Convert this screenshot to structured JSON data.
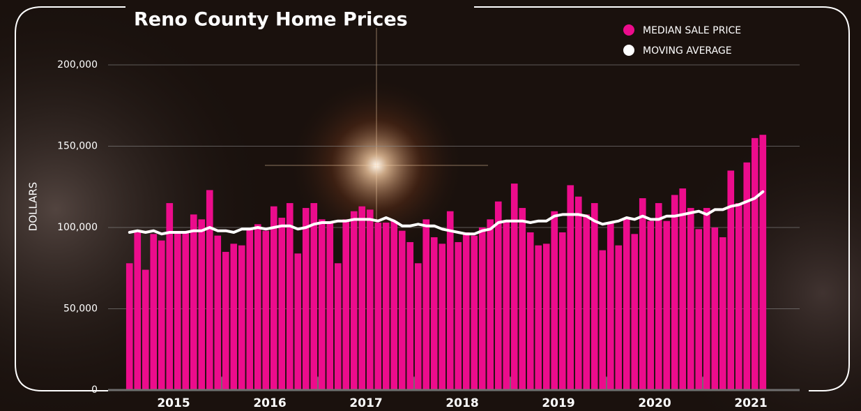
{
  "chart_data": {
    "type": "bar",
    "title": "Reno County Home Prices",
    "y_label": "DOLLARS",
    "x_labels": [
      "2015",
      "2016",
      "2017",
      "2018",
      "2019",
      "2020",
      "2021"
    ],
    "categories": [
      null,
      null,
      null,
      null,
      null,
      null,
      null,
      null,
      null,
      null,
      null,
      null,
      null,
      null,
      null,
      null,
      null,
      null,
      null,
      null,
      null,
      null,
      null,
      null,
      null,
      null,
      null,
      null,
      null,
      null,
      null,
      null,
      null,
      null,
      null,
      null,
      null,
      null,
      null,
      null,
      null,
      null,
      null,
      null,
      null,
      null,
      null,
      null,
      null,
      null,
      null,
      null,
      null,
      null,
      null,
      null,
      null,
      null,
      null,
      null,
      null,
      null,
      null,
      null,
      null,
      null,
      null,
      null,
      null,
      null,
      null,
      null,
      null,
      null,
      null,
      null,
      null,
      null,
      null,
      null
    ],
    "series": [
      {
        "name": "MEDIAN SALE PRICE",
        "type": "bar",
        "color": "#ec0c8c",
        "values": [
          78000,
          97000,
          74000,
          96000,
          92000,
          115000,
          97000,
          97000,
          108000,
          105000,
          123000,
          95000,
          85000,
          90000,
          89000,
          99000,
          102000,
          98000,
          113000,
          106000,
          115000,
          84000,
          112000,
          115000,
          105000,
          103000,
          78000,
          105000,
          110000,
          113000,
          111000,
          103000,
          103000,
          104000,
          98000,
          91000,
          78000,
          105000,
          94000,
          90000,
          110000,
          91000,
          97000,
          95000,
          100000,
          105000,
          116000,
          104000,
          127000,
          112000,
          97000,
          89000,
          90000,
          110000,
          97000,
          126000,
          119000,
          108000,
          115000,
          86000,
          103000,
          89000,
          106000,
          96000,
          118000,
          104000,
          115000,
          104000,
          120000,
          124000,
          112000,
          99000,
          112000,
          100000,
          94000,
          135000,
          115000,
          140000,
          155000,
          157000
        ]
      },
      {
        "name": "MOVING AVERAGE",
        "type": "line",
        "color": "#ffffff",
        "values": [
          97000,
          98000,
          97000,
          98000,
          96000,
          97000,
          97000,
          97000,
          98000,
          98000,
          100000,
          98000,
          98000,
          97000,
          99000,
          99000,
          100000,
          99000,
          100000,
          101000,
          101000,
          99000,
          100000,
          102000,
          103000,
          103000,
          104000,
          104000,
          105000,
          105000,
          105000,
          104000,
          106000,
          104000,
          101000,
          101000,
          102000,
          101000,
          101000,
          99000,
          98000,
          97000,
          96000,
          96000,
          98000,
          99000,
          103000,
          104000,
          104000,
          104000,
          103000,
          104000,
          104000,
          107000,
          108000,
          108000,
          108000,
          107000,
          104000,
          102000,
          103000,
          104000,
          106000,
          105000,
          107000,
          105000,
          105000,
          107000,
          107000,
          108000,
          109000,
          110000,
          108000,
          111000,
          111000,
          113000,
          114000,
          116000,
          118000,
          122000
        ]
      }
    ],
    "ylim": [
      0,
      200000
    ],
    "yticks": [
      0,
      {
        "value": 50000,
        "label": "50,000"
      },
      {
        "value": 100000,
        "label": "100,000"
      },
      {
        "value": 150000,
        "label": "150,000"
      },
      {
        "value": 200000,
        "label": "200,000"
      }
    ],
    "grid": true
  }
}
